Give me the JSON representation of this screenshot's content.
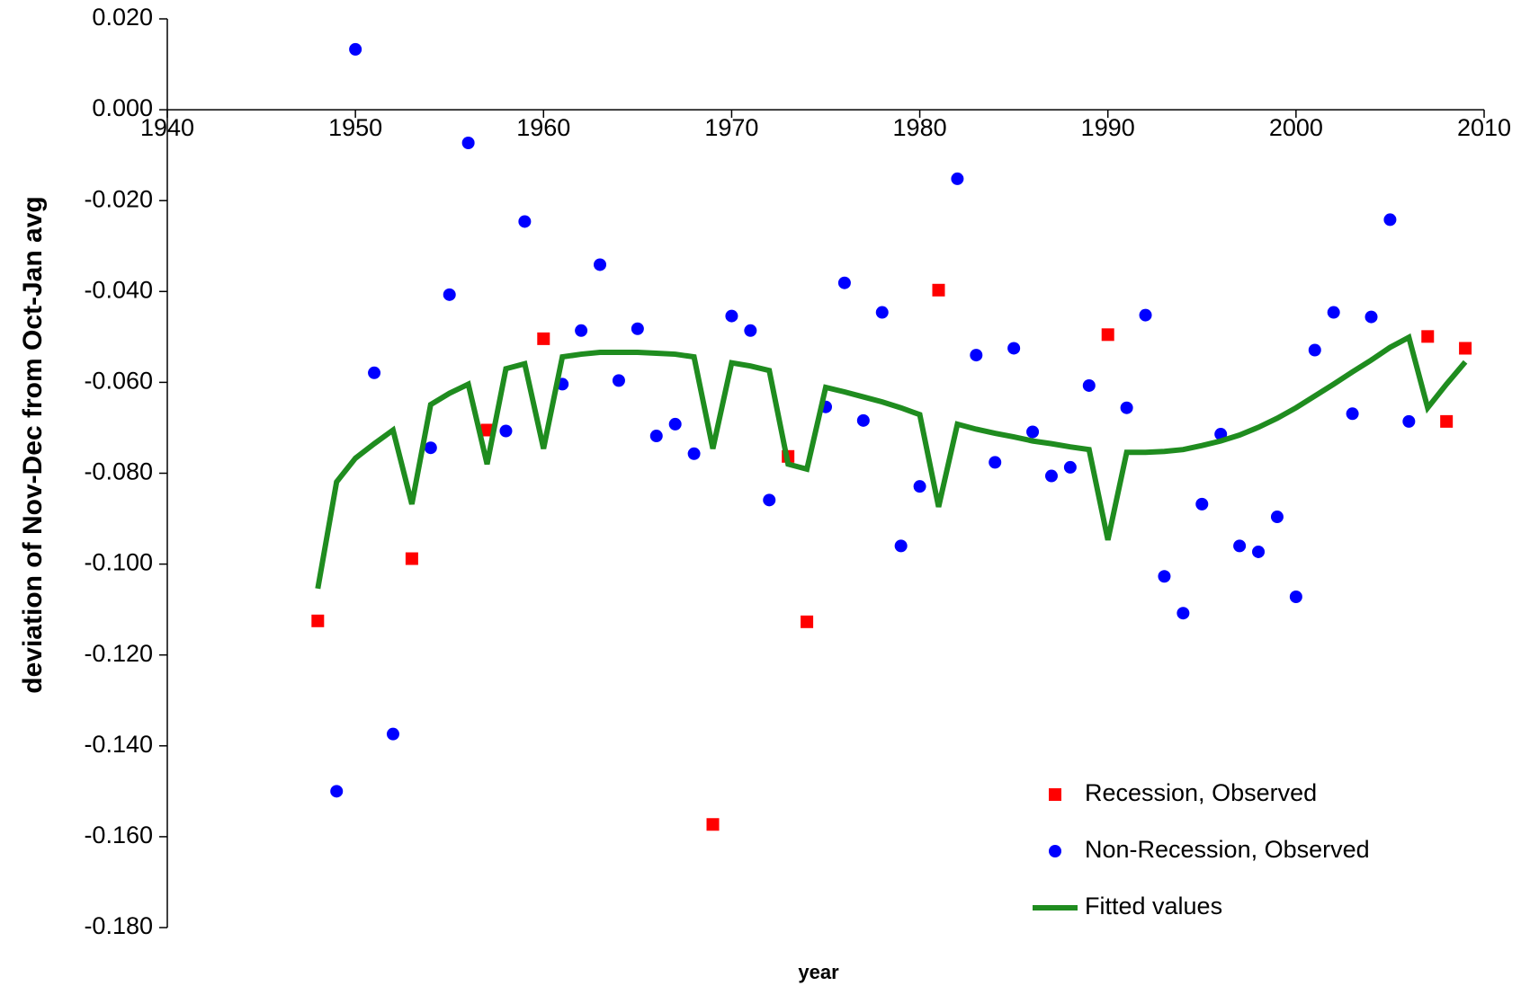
{
  "chart_data": {
    "type": "scatter",
    "y_label": "deviation of Nov-Dec from Oct-Jan avg",
    "x_label": "year",
    "xlim": [
      1940,
      2010
    ],
    "xticks": [
      1940,
      1950,
      1960,
      1970,
      1980,
      1990,
      2000,
      2010
    ],
    "ylim": [
      -0.18,
      0.02
    ],
    "yticks": [
      {
        "value": -0.18,
        "label": "-0.180"
      },
      {
        "value": -0.16,
        "label": "-0.160"
      },
      {
        "value": -0.14,
        "label": "-0.140"
      },
      {
        "value": -0.12,
        "label": "-0.120"
      },
      {
        "value": -0.1,
        "label": "-0.100"
      },
      {
        "value": -0.08,
        "label": "-0.080"
      },
      {
        "value": -0.06,
        "label": "-0.060"
      },
      {
        "value": -0.04,
        "label": "-0.040"
      },
      {
        "value": -0.02,
        "label": "-0.020"
      },
      {
        "value": 0,
        "label": "0.000"
      },
      {
        "value": 0.02,
        "label": "0.020"
      }
    ],
    "legend": "lower right",
    "series": [
      {
        "name": "Recession, Observed",
        "color": "#ff0000",
        "marker": "square",
        "x": [
          1948,
          1953,
          1957,
          1960,
          1969,
          1973,
          1974,
          1981,
          1990,
          2007,
          2008,
          2009
        ],
        "values": [
          -0.1125,
          -0.0988,
          -0.0705,
          -0.0504,
          -0.1573,
          -0.0763,
          -0.1127,
          -0.0397,
          -0.0495,
          -0.0499,
          -0.0686,
          -0.0525
        ]
      },
      {
        "name": "Non-Recession, Observed",
        "color": "#0000ff",
        "marker": "circle",
        "x": [
          1949,
          1950,
          1951,
          1952,
          1954,
          1955,
          1956,
          1958,
          1959,
          1961,
          1962,
          1963,
          1964,
          1965,
          1966,
          1967,
          1968,
          1970,
          1971,
          1972,
          1975,
          1976,
          1977,
          1978,
          1979,
          1980,
          1982,
          1983,
          1984,
          1985,
          1986,
          1987,
          1988,
          1989,
          1991,
          1992,
          1993,
          1994,
          1995,
          1996,
          1997,
          1998,
          1999,
          2000,
          2001,
          2002,
          2003,
          2004,
          2005,
          2006
        ],
        "values": [
          -0.15,
          0.0133,
          -0.0579,
          -0.1374,
          -0.0744,
          -0.0407,
          -0.0073,
          -0.0707,
          -0.0246,
          -0.0604,
          -0.0486,
          -0.0341,
          -0.0596,
          -0.0482,
          -0.0718,
          -0.0692,
          -0.0757,
          -0.0454,
          -0.0486,
          -0.0859,
          -0.0654,
          -0.0381,
          -0.0684,
          -0.0446,
          -0.096,
          -0.0829,
          -0.0152,
          -0.054,
          -0.0776,
          -0.0525,
          -0.0709,
          -0.0806,
          -0.0787,
          -0.0607,
          -0.0656,
          -0.0452,
          -0.1027,
          -0.1108,
          -0.0868,
          -0.0714,
          -0.096,
          -0.0973,
          -0.0896,
          -0.1072,
          -0.0529,
          -0.0446,
          -0.0669,
          -0.0456,
          -0.0242,
          -0.0686
        ]
      },
      {
        "name": "Fitted values",
        "color": "#1f8c1f",
        "marker": "line",
        "x": [
          1948,
          1949,
          1950,
          1951,
          1952,
          1953,
          1954,
          1955,
          1956,
          1957,
          1958,
          1959,
          1960,
          1961,
          1962,
          1963,
          1964,
          1965,
          1966,
          1967,
          1968,
          1969,
          1970,
          1971,
          1972,
          1973,
          1974,
          1975,
          1976,
          1977,
          1978,
          1979,
          1980,
          1981,
          1982,
          1983,
          1984,
          1985,
          1986,
          1987,
          1988,
          1989,
          1990,
          1991,
          1992,
          1993,
          1994,
          1995,
          1996,
          1997,
          1998,
          1999,
          2000,
          2001,
          2002,
          2003,
          2004,
          2005,
          2006,
          2007,
          2008,
          2009
        ],
        "values": [
          -0.1054,
          -0.0819,
          -0.0767,
          -0.0735,
          -0.0705,
          -0.0868,
          -0.0649,
          -0.0624,
          -0.0604,
          -0.078,
          -0.057,
          -0.0559,
          -0.0746,
          -0.0544,
          -0.0538,
          -0.0534,
          -0.0534,
          -0.0534,
          -0.0536,
          -0.0538,
          -0.0544,
          -0.0746,
          -0.0557,
          -0.0564,
          -0.0574,
          -0.078,
          -0.0791,
          -0.0611,
          -0.0621,
          -0.0632,
          -0.0643,
          -0.0656,
          -0.0671,
          -0.0874,
          -0.0692,
          -0.0703,
          -0.0712,
          -0.072,
          -0.0729,
          -0.0735,
          -0.0742,
          -0.0748,
          -0.0947,
          -0.0754,
          -0.0754,
          -0.0752,
          -0.0748,
          -0.0739,
          -0.0729,
          -0.0716,
          -0.0699,
          -0.0679,
          -0.0656,
          -0.063,
          -0.0604,
          -0.0577,
          -0.0551,
          -0.0523,
          -0.0501,
          -0.0656,
          -0.0604,
          -0.0555
        ]
      }
    ]
  }
}
